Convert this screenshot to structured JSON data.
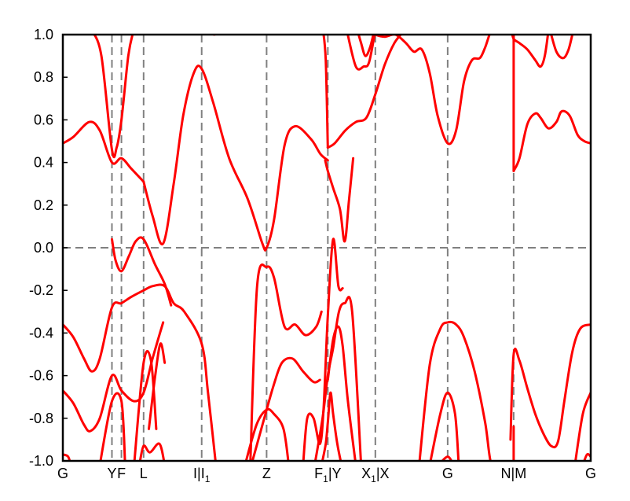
{
  "chart_data": {
    "type": "line",
    "title": "",
    "xlabel": "",
    "ylabel": "",
    "ylim": [
      -1.0,
      1.0
    ],
    "y_ticks": [
      "1.0",
      "0.8",
      "0.6",
      "0.4",
      "0.2",
      "0.0",
      "-0.2",
      "-0.4",
      "-0.6",
      "-0.8",
      "-1.0"
    ],
    "y_tick_values": [
      1.0,
      0.8,
      0.6,
      0.4,
      0.2,
      0.0,
      -0.2,
      -0.4,
      -0.6,
      -0.8,
      -1.0
    ],
    "x_range": [
      0,
      100
    ],
    "k_points": [
      {
        "label": "G",
        "sub": "",
        "suffix": "",
        "x": 0.0
      },
      {
        "label": "Y",
        "sub": "",
        "suffix": "",
        "x": 9.3
      },
      {
        "label": "F",
        "sub": "",
        "suffix": "",
        "x": 11.1
      },
      {
        "label": "L",
        "sub": "",
        "suffix": "",
        "x": 15.3
      },
      {
        "label": "I|I",
        "sub": "1",
        "suffix": "",
        "x": 26.3
      },
      {
        "label": "Z",
        "sub": "",
        "suffix": "",
        "x": 38.6
      },
      {
        "label": "F",
        "sub": "1",
        "suffix": "|Y",
        "x": 50.2
      },
      {
        "label": "X",
        "sub": "1",
        "suffix": "|X",
        "x": 59.2
      },
      {
        "label": "G",
        "sub": "",
        "suffix": "",
        "x": 72.9
      },
      {
        "label": "N|M",
        "sub": "",
        "suffix": "",
        "x": 85.4
      },
      {
        "label": "G",
        "sub": "",
        "suffix": "",
        "x": 100.0
      }
    ],
    "fermi_level": 0.0,
    "line_color": "#ff0000",
    "guide_color": "#808080",
    "series": [
      {
        "x": [
          0,
          2,
          5,
          7,
          9.3,
          11.1,
          13,
          15.3
        ],
        "y": [
          0.49,
          0.52,
          0.59,
          0.55,
          0.4,
          0.42,
          0.37,
          0.31
        ]
      },
      {
        "x": [
          5.5,
          7.3,
          9.3,
          10.2,
          11.1,
          12.4,
          13.4
        ],
        "y": [
          1.02,
          0.9,
          0.46,
          0.47,
          0.6,
          0.9,
          1.02
        ]
      },
      {
        "x": [
          9.3,
          10,
          11.1,
          12.5,
          13.8,
          15.3,
          17.5,
          19.3,
          20.5
        ],
        "y": [
          0.04,
          -0.06,
          -0.11,
          -0.04,
          0.03,
          0.04,
          -0.08,
          -0.17,
          -0.27
        ]
      },
      {
        "x": [
          15.3,
          17,
          19,
          21,
          22.8,
          24.8,
          26.3,
          28.5,
          31.5,
          35,
          37.8,
          38.6,
          40,
          42,
          44,
          47,
          48.8,
          50.2
        ],
        "y": [
          0.31,
          0.15,
          0.02,
          0.3,
          0.62,
          0.82,
          0.84,
          0.68,
          0.42,
          0.23,
          0.02,
          0.0,
          0.13,
          0.48,
          0.57,
          0.51,
          0.44,
          0.41
        ]
      },
      {
        "x": [
          0,
          2,
          4,
          5.5,
          7,
          9.3,
          11.1,
          13,
          15.3,
          17,
          19.3,
          21,
          23,
          26.3,
          27.5,
          29
        ],
        "y": [
          -0.36,
          -0.42,
          -0.52,
          -0.58,
          -0.52,
          -0.28,
          -0.26,
          -0.23,
          -0.2,
          -0.18,
          -0.18,
          -0.26,
          -0.3,
          -0.45,
          -0.68,
          -1.02
        ]
      },
      {
        "x": [
          0,
          2,
          4,
          5.2,
          7,
          9.3,
          11.1,
          13.5,
          15.3,
          17,
          19
        ],
        "y": [
          -0.67,
          -0.73,
          -0.83,
          -0.86,
          -0.8,
          -0.6,
          -0.67,
          -0.72,
          -0.68,
          -0.52,
          -0.35
        ]
      },
      {
        "x": [
          7,
          9.3,
          11.1,
          11.8
        ],
        "y": [
          -1.02,
          -0.72,
          -0.72,
          -1.02
        ]
      },
      {
        "x": [
          0,
          1,
          1.5
        ],
        "y": [
          -0.97,
          -0.98,
          -1.02
        ]
      },
      {
        "x": [
          13.5,
          15.3,
          16.7,
          17.7
        ],
        "y": [
          -1.02,
          -0.54,
          -0.53,
          -0.85
        ]
      },
      {
        "x": [
          16.3,
          17.5,
          18.5,
          19.3
        ],
        "y": [
          -0.85,
          -0.6,
          -0.45,
          -0.54
        ]
      },
      {
        "x": [
          14.5,
          15.3,
          16.5,
          18.3,
          19.3
        ],
        "y": [
          -1.02,
          -0.93,
          -0.96,
          -0.92,
          -1.02
        ]
      },
      {
        "x": [
          27.5,
          28.7,
          29.8
        ],
        "y": [
          1.02,
          1.0,
          1.02
        ]
      },
      {
        "x": [
          35.5,
          36.8,
          38.6,
          40,
          42,
          44,
          46,
          48,
          49
        ],
        "y": [
          -1.02,
          -0.18,
          -0.09,
          -0.14,
          -0.37,
          -0.36,
          -0.41,
          -0.37,
          -0.3
        ]
      },
      {
        "x": [
          35.7,
          38.6,
          40,
          41.5,
          43.5,
          45.5,
          47.5,
          48.7
        ],
        "y": [
          -1.02,
          -0.76,
          -0.64,
          -0.54,
          -0.52,
          -0.58,
          -0.63,
          -0.62
        ]
      },
      {
        "x": [
          34.5,
          36.7,
          38.6,
          40,
          41.8,
          42.8
        ],
        "y": [
          -1.02,
          -0.83,
          -0.76,
          -0.78,
          -0.85,
          -1.02
        ]
      },
      {
        "x": [
          45.5,
          46.3,
          47.5,
          48.7,
          49.4,
          50.2,
          51.2,
          52.2,
          53
        ],
        "y": [
          -1.02,
          -0.8,
          -0.8,
          -0.92,
          -0.75,
          -0.32,
          0.04,
          -0.18,
          -0.19
        ]
      },
      {
        "x": [
          50.2,
          51.2,
          52.2,
          53,
          54,
          55.5
        ],
        "y": [
          -0.62,
          -0.43,
          -0.37,
          -0.46,
          -0.72,
          -1.02
        ]
      },
      {
        "x": [
          47.7,
          49.2,
          50.2,
          51.2,
          52.3,
          53.4,
          54.8,
          56.5
        ],
        "y": [
          -1.02,
          -0.8,
          -0.6,
          -0.47,
          -0.3,
          -0.26,
          -0.3,
          -1.02
        ]
      },
      {
        "x": [
          49,
          49.8,
          50.2,
          50.7,
          51.2,
          52,
          52.8
        ],
        "y": [
          -1.02,
          -0.92,
          -0.82,
          -0.68,
          -0.78,
          -0.92,
          -1.02
        ]
      },
      {
        "x": [
          49.3,
          49.8,
          50.2
        ],
        "y": [
          1.02,
          0.88,
          0.47
        ]
      },
      {
        "x": [
          49.7,
          50.2,
          51.2,
          52.5,
          53.4,
          54.2,
          55
        ],
        "y": [
          0.41,
          0.36,
          0.28,
          0.18,
          0.03,
          0.22,
          0.42
        ]
      },
      {
        "x": [
          50.2,
          51.5,
          53.5,
          55.5,
          57.5,
          59.2,
          61,
          62.8,
          64.7
        ],
        "y": [
          0.47,
          0.49,
          0.55,
          0.59,
          0.61,
          0.72,
          0.86,
          0.96,
          1.02
        ]
      },
      {
        "x": [
          53.8,
          55.5,
          57,
          58,
          59.2
        ],
        "y": [
          1.02,
          0.85,
          0.85,
          0.87,
          1.02
        ]
      },
      {
        "x": [
          55.8,
          56.5,
          57.3,
          58.2,
          59
        ],
        "y": [
          1.02,
          0.96,
          0.9,
          0.94,
          1.02
        ]
      },
      {
        "x": [
          58,
          59.2,
          61,
          63,
          65,
          66.5,
          68,
          69.5,
          71,
          72.9,
          74.5,
          76,
          77.5,
          79,
          80,
          81.2,
          82.5,
          83.5
        ],
        "y": [
          1.02,
          1.0,
          0.99,
          1.0,
          0.96,
          0.92,
          0.93,
          0.82,
          0.62,
          0.49,
          0.55,
          0.78,
          0.88,
          0.89,
          0.94,
          1.02,
          1.02,
          1.02
        ]
      },
      {
        "x": [
          67.5,
          69.5,
          71.5,
          72.9,
          74.5,
          76,
          78,
          80,
          81.2,
          83,
          84.5
        ],
        "y": [
          -1.02,
          -0.55,
          -0.38,
          -0.35,
          -0.36,
          -0.42,
          -0.58,
          -0.82,
          -1.02,
          -1.02,
          -1.02
        ]
      },
      {
        "x": [
          69.5,
          71.5,
          72.9,
          74.3,
          75
        ],
        "y": [
          -1.02,
          -0.78,
          -0.68,
          -0.78,
          -1.02
        ]
      },
      {
        "x": [
          71.2,
          72.9,
          74
        ],
        "y": [
          -1.02,
          -0.98,
          -1.02
        ]
      },
      {
        "x": [
          84.8,
          85.4,
          86.5,
          88,
          89.5,
          91,
          92.5,
          93.8,
          95,
          96.5,
          98,
          100
        ],
        "y": [
          -0.9,
          -0.5,
          -0.53,
          -0.66,
          -0.78,
          -0.87,
          -0.93,
          -0.91,
          -0.72,
          -0.49,
          -0.38,
          -0.36
        ]
      },
      {
        "x": [
          85.4,
          86.5,
          88,
          89.5,
          90.5,
          92,
          93.5,
          94.5,
          96,
          97.5,
          98.8,
          100
        ],
        "y": [
          0.36,
          0.42,
          0.58,
          0.63,
          0.61,
          0.56,
          0.59,
          0.64,
          0.62,
          0.53,
          0.5,
          0.49
        ]
      },
      {
        "x": [
          85,
          85.4,
          86.5,
          88,
          89.5,
          90.5,
          91.3,
          92
        ],
        "y": [
          1.02,
          0.98,
          0.96,
          0.93,
          0.88,
          0.85,
          0.9,
          1.02
        ]
      },
      {
        "x": [
          92.3,
          93.5,
          94.8,
          95.8,
          96.7
        ],
        "y": [
          1.02,
          0.92,
          0.89,
          0.93,
          1.02
        ]
      },
      {
        "x": [
          97,
          98.5,
          100
        ],
        "y": [
          -1.02,
          -0.78,
          -0.68
        ]
      },
      {
        "x": [
          98.5,
          99.3,
          100
        ],
        "y": [
          -1.02,
          -0.97,
          -0.98
        ]
      },
      {
        "x": [
          85.4,
          85.4
        ],
        "y": [
          -0.84,
          -1.02
        ]
      },
      {
        "x": [
          85.4,
          85.4
        ],
        "y": [
          1.02,
          0.36
        ]
      }
    ]
  }
}
